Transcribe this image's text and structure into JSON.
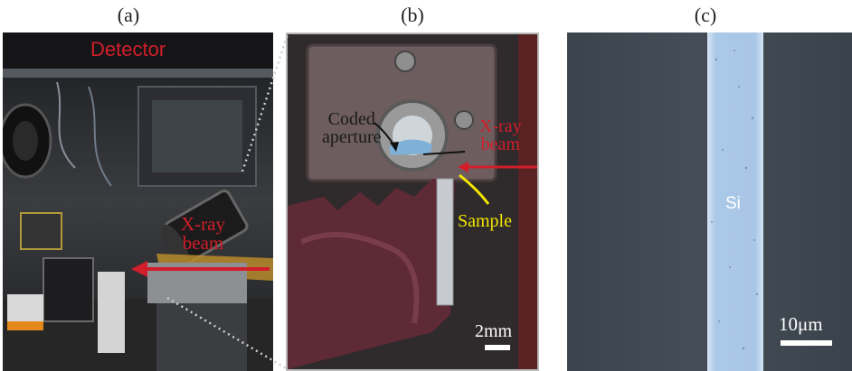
{
  "labels": {
    "a": "(a)",
    "b": "(b)",
    "c": "(c)"
  },
  "panel_a": {
    "detector_label": "Detector",
    "xray_line1": "X-ray",
    "xray_line2": "beam",
    "label_color": "#d11e2a"
  },
  "panel_b": {
    "coded_line1": "Coded",
    "coded_line2": "aperture",
    "xray_line1": "X-ray",
    "xray_line2": "beam",
    "sample_label": "Sample",
    "scale_label": "2mm",
    "sample_color": "#f2e600"
  },
  "panel_c": {
    "material_label": "Si",
    "scale_label": "10μm"
  }
}
